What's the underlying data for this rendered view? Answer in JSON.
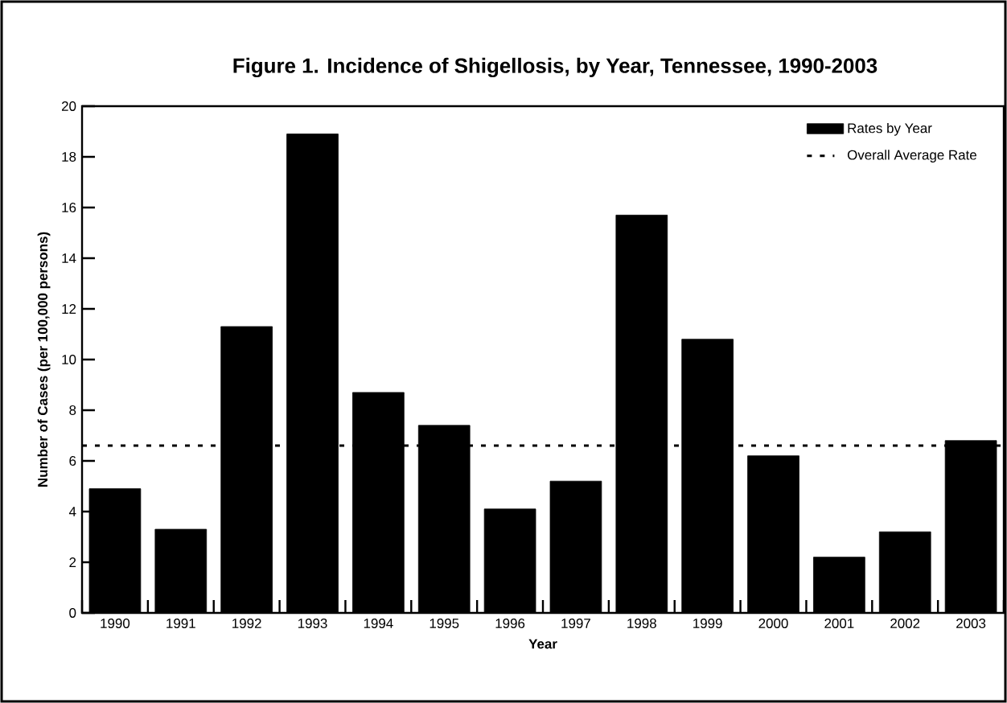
{
  "chart_data": {
    "type": "bar",
    "title": "Figure 1. Incidence of Shigellosis, by Year, Tennessee, 1990-2003",
    "xlabel": "Year",
    "ylabel": "Number of Cases (per 100,000 persons)",
    "categories": [
      "1990",
      "1991",
      "1992",
      "1993",
      "1994",
      "1995",
      "1996",
      "1997",
      "1998",
      "1999",
      "2000",
      "2001",
      "2002",
      "2003"
    ],
    "series": [
      {
        "name": "Rates by Year",
        "color": "#000000",
        "values": [
          4.9,
          3.3,
          11.3,
          18.9,
          8.7,
          7.4,
          4.1,
          5.2,
          15.7,
          10.8,
          6.2,
          2.2,
          3.2,
          6.8
        ]
      }
    ],
    "ylim": [
      0,
      20
    ],
    "yticks": [
      0,
      2,
      4,
      6,
      8,
      10,
      12,
      14,
      16,
      18,
      20
    ],
    "ref_lines": [
      {
        "axis": "y",
        "value": 6.6,
        "label": "Overall Average Rate",
        "color": "#000000",
        "line_style": "dashed"
      }
    ],
    "legend": "top right",
    "grid": false
  }
}
